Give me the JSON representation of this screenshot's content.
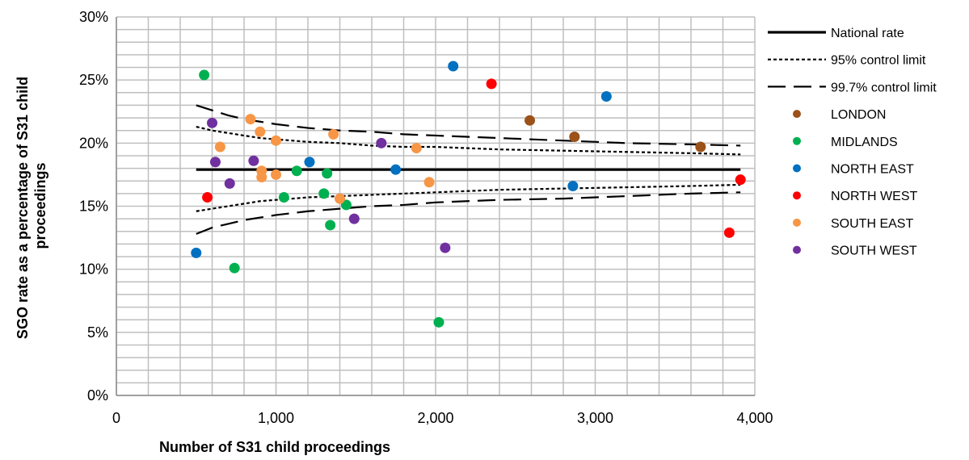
{
  "chart_data": {
    "type": "scatter",
    "xlabel": "Number of S31 child proceedings",
    "ylabel": "SGO rate as a percentage of S31 child proceedings",
    "xlim": [
      0,
      4000
    ],
    "ylim": [
      0,
      30
    ],
    "x_ticks": [
      0,
      1000,
      2000,
      3000,
      4000
    ],
    "x_tick_labels": [
      "0",
      "1,000",
      "2,000",
      "3,000",
      "4,000"
    ],
    "y_ticks": [
      0,
      5,
      10,
      15,
      20,
      25,
      30
    ],
    "y_tick_labels": [
      "0%",
      "5%",
      "10%",
      "15%",
      "20%",
      "25%",
      "30%"
    ],
    "grid": true,
    "legend_position": "right",
    "lines": [
      {
        "name": "National rate",
        "style": "solid",
        "color": "#000000",
        "x": [
          500,
          3910
        ],
        "y": [
          17.9,
          17.9
        ]
      },
      {
        "name": "95% control limit",
        "style": "dotted",
        "color": "#000000",
        "upper": {
          "x": [
            500,
            600,
            700,
            800,
            900,
            1000,
            1200,
            1400,
            1600,
            1800,
            2000,
            2400,
            2800,
            3200,
            3600,
            3910
          ],
          "y": [
            21.3,
            21.0,
            20.8,
            20.6,
            20.4,
            20.3,
            20.1,
            20.0,
            19.8,
            19.7,
            19.7,
            19.5,
            19.4,
            19.3,
            19.2,
            19.1
          ]
        },
        "lower": {
          "x": [
            500,
            600,
            700,
            800,
            900,
            1000,
            1200,
            1400,
            1600,
            1800,
            2000,
            2400,
            2800,
            3200,
            3600,
            3910
          ],
          "y": [
            14.6,
            14.8,
            15.0,
            15.2,
            15.4,
            15.5,
            15.7,
            15.8,
            15.9,
            16.0,
            16.1,
            16.3,
            16.4,
            16.5,
            16.6,
            16.7
          ]
        }
      },
      {
        "name": "99.7% control limit",
        "style": "dashed",
        "color": "#000000",
        "upper": {
          "x": [
            500,
            600,
            700,
            800,
            900,
            1000,
            1200,
            1400,
            1600,
            1800,
            2000,
            2400,
            2800,
            3200,
            3600,
            3910
          ],
          "y": [
            23.0,
            22.6,
            22.2,
            21.9,
            21.7,
            21.5,
            21.2,
            21.0,
            20.9,
            20.7,
            20.6,
            20.4,
            20.2,
            20.0,
            19.9,
            19.8
          ]
        },
        "lower": {
          "x": [
            500,
            600,
            700,
            800,
            900,
            1000,
            1200,
            1400,
            1600,
            1800,
            2000,
            2400,
            2800,
            3200,
            3600,
            3910
          ],
          "y": [
            12.8,
            13.3,
            13.6,
            13.9,
            14.1,
            14.3,
            14.6,
            14.8,
            15.0,
            15.1,
            15.3,
            15.5,
            15.6,
            15.8,
            16.0,
            16.1
          ]
        }
      }
    ],
    "series": [
      {
        "name": "LONDON",
        "color": "#9B5117",
        "points": [
          [
            2590,
            21.8
          ],
          [
            2870,
            20.5
          ],
          [
            3660,
            19.7
          ]
        ]
      },
      {
        "name": "MIDLANDS",
        "color": "#00B050",
        "points": [
          [
            550,
            25.4
          ],
          [
            740,
            10.1
          ],
          [
            1050,
            15.7
          ],
          [
            1130,
            17.8
          ],
          [
            1300,
            16.0
          ],
          [
            1320,
            17.6
          ],
          [
            1340,
            13.5
          ],
          [
            1440,
            15.1
          ],
          [
            2020,
            5.8
          ]
        ]
      },
      {
        "name": "NORTH EAST",
        "color": "#0070C0",
        "points": [
          [
            500,
            11.3
          ],
          [
            1210,
            18.5
          ],
          [
            1750,
            17.9
          ],
          [
            2110,
            26.1
          ],
          [
            2860,
            16.6
          ],
          [
            3070,
            23.7
          ]
        ]
      },
      {
        "name": "NORTH WEST",
        "color": "#FF0000",
        "points": [
          [
            570,
            15.7
          ],
          [
            2350,
            24.7
          ],
          [
            3840,
            12.9
          ],
          [
            3910,
            17.1
          ]
        ]
      },
      {
        "name": "SOUTH EAST",
        "color": "#F79646",
        "points": [
          [
            650,
            19.7
          ],
          [
            840,
            21.9
          ],
          [
            900,
            20.9
          ],
          [
            910,
            17.8
          ],
          [
            910,
            17.3
          ],
          [
            1000,
            20.2
          ],
          [
            1000,
            17.5
          ],
          [
            1360,
            20.7
          ],
          [
            1400,
            15.6
          ],
          [
            1880,
            19.6
          ],
          [
            1960,
            16.9
          ]
        ]
      },
      {
        "name": "SOUTH WEST",
        "color": "#7030A0",
        "points": [
          [
            600,
            21.6
          ],
          [
            620,
            18.5
          ],
          [
            710,
            16.8
          ],
          [
            860,
            18.6
          ],
          [
            1490,
            14.0
          ],
          [
            1660,
            20.0
          ],
          [
            2060,
            11.7
          ]
        ]
      }
    ]
  }
}
